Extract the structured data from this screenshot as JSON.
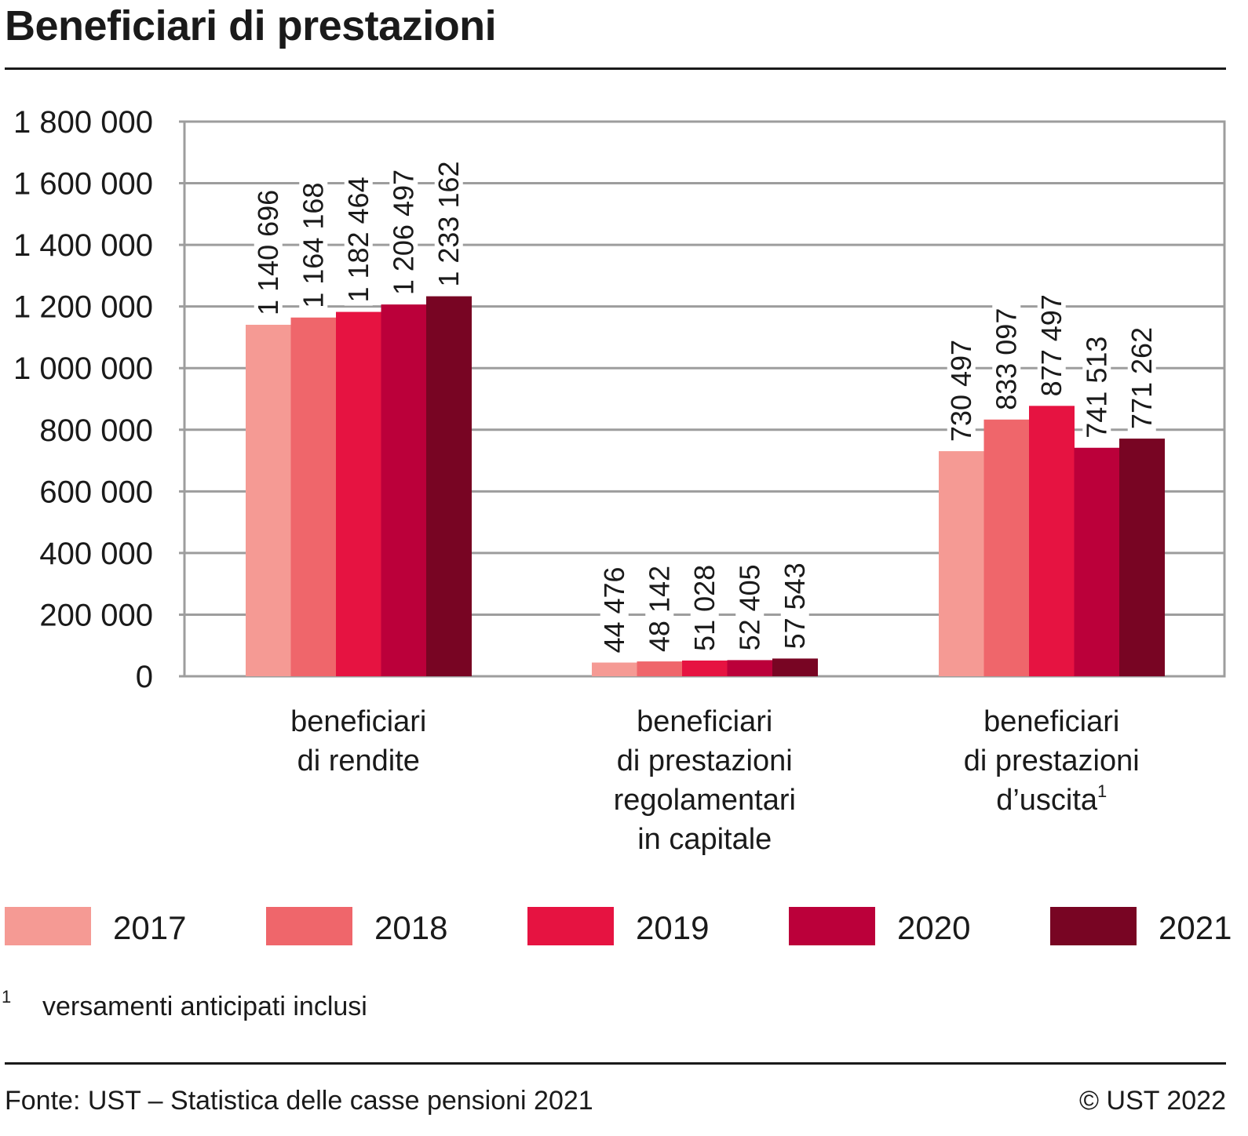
{
  "header": {
    "title": "Beneficiari di prestazioni"
  },
  "chart_data": {
    "type": "bar",
    "title": "Beneficiari di prestazioni",
    "xlabel": "",
    "ylabel": "",
    "ylim": [
      0,
      1800000
    ],
    "yticks": [
      0,
      200000,
      400000,
      600000,
      800000,
      1000000,
      1200000,
      1400000,
      1600000,
      1800000
    ],
    "ytick_labels": [
      "0",
      "200 000",
      "400 000",
      "600 000",
      "800 000",
      "1 000 000",
      "1 200 000",
      "1 400 000",
      "1 600 000",
      "1 800 000"
    ],
    "grid": true,
    "legend_position": "bottom",
    "categories": [
      {
        "lines": [
          "beneficiari",
          "di rendite"
        ],
        "sup": ""
      },
      {
        "lines": [
          "beneficiari",
          "di prestazioni",
          "regolamentari",
          "in capitale"
        ],
        "sup": ""
      },
      {
        "lines": [
          "beneficiari",
          "di prestazioni",
          "d’uscita"
        ],
        "sup": "1"
      }
    ],
    "series": [
      {
        "name": "2017",
        "color": "#f59a94",
        "values": [
          1140696,
          44476,
          730497
        ],
        "labels": [
          "1 140 696",
          "44 476",
          "730 497"
        ]
      },
      {
        "name": "2018",
        "color": "#ef666b",
        "values": [
          1164168,
          48142,
          833097
        ],
        "labels": [
          "1 164 168",
          "48 142",
          "833 097"
        ]
      },
      {
        "name": "2019",
        "color": "#e61341",
        "values": [
          1182464,
          51028,
          877497
        ],
        "labels": [
          "1 182 464",
          "51 028",
          "877 497"
        ]
      },
      {
        "name": "2020",
        "color": "#bb003a",
        "values": [
          1206497,
          52405,
          741513
        ],
        "labels": [
          "1 206 497",
          "52 405",
          "741 513"
        ]
      },
      {
        "name": "2021",
        "color": "#780523",
        "values": [
          1233162,
          57543,
          771262
        ],
        "labels": [
          "1 233 162",
          "57 543",
          "771 262"
        ]
      }
    ],
    "colors": {
      "grid": "#9d9d9d",
      "text": "#1a1a1a"
    }
  },
  "footnote": {
    "mark": "1",
    "text": "versamenti anticipati inclusi"
  },
  "footer": {
    "source": "Fonte: UST – Statistica delle casse pensioni 2021",
    "copyright": "© UST 2022"
  }
}
